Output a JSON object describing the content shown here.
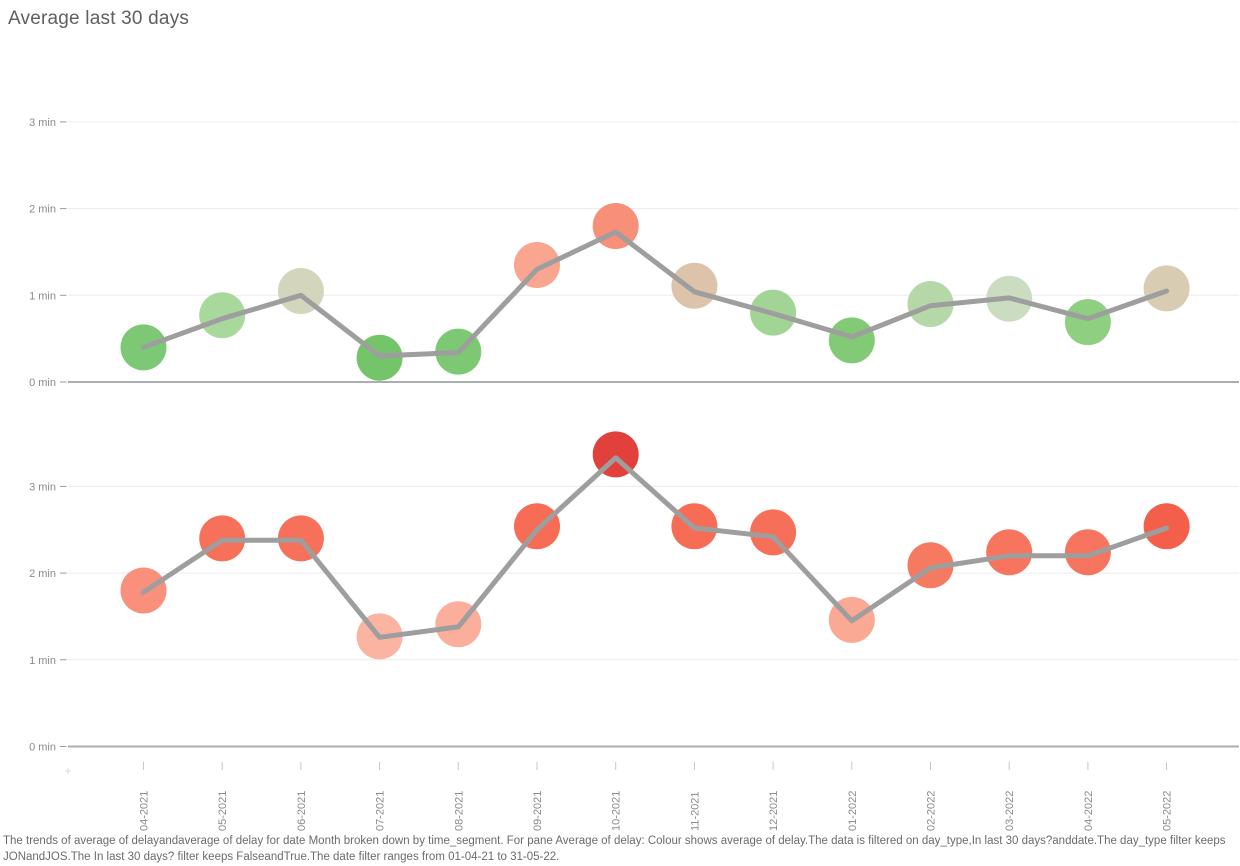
{
  "title": "Average last 30 days",
  "caption": "The trends of average of delayandaverage of delay for date Month broken down by time_segment. For pane Average of delay: Colour shows average of delay.The data is filtered on day_type,In last 30 days?anddate.The day_type filter keeps JONandJOS.The In last 30 days? filter keeps FalseandTrue.The date filter ranges from 01-04-21 to 31-05-22.",
  "colors": {
    "line": "#9e9e9e",
    "grid": "#ececec",
    "zero_line": "#a9aeb2",
    "tick_label": "#8a8a8a",
    "tick_mark": "#9b9b9b",
    "x_tick_mark": "#c6c6c6",
    "title_text": "#5f5f5f",
    "caption_text": "#6b6b6b"
  },
  "chart_data": [
    {
      "type": "line",
      "title": "Average last 30 days (upper time_segment pane)",
      "x": [
        "04-2021",
        "05-2021",
        "06-2021",
        "07-2021",
        "08-2021",
        "09-2021",
        "10-2021",
        "11-2021",
        "12-2021",
        "01-2022",
        "02-2022",
        "03-2022",
        "04-2022",
        "05-2022"
      ],
      "y_ticks": [
        "0 min",
        "1 min",
        "2 min",
        "3 min"
      ],
      "ylabel": "minutes",
      "ylim": [
        0,
        3.7
      ],
      "grid": true,
      "legend": false,
      "series": [
        {
          "name": "average of delay (trend line)",
          "type": "line",
          "values": [
            0.4,
            0.73,
            1.0,
            0.3,
            0.34,
            1.3,
            1.73,
            1.04,
            0.79,
            0.52,
            0.88,
            0.97,
            0.73,
            1.05
          ]
        },
        {
          "name": "average of delay (circles, colour = average of delay)",
          "type": "scatter",
          "values": [
            0.4,
            0.77,
            1.05,
            0.28,
            0.35,
            1.35,
            1.8,
            1.11,
            0.8,
            0.48,
            0.9,
            0.96,
            0.69,
            1.08
          ],
          "point_colors": [
            "#7dc874",
            "#a9d89d",
            "#d3d6bd",
            "#74c56a",
            "#7cc873",
            "#f9a58f",
            "#f88f78",
            "#dcc3aa",
            "#a2d495",
            "#83ca77",
            "#b5d8a8",
            "#cbdcc0",
            "#8ecf82",
            "#d8ccb3"
          ]
        }
      ]
    },
    {
      "type": "line",
      "title": "Average last 30 days (lower time_segment pane)",
      "x": [
        "04-2021",
        "05-2021",
        "06-2021",
        "07-2021",
        "08-2021",
        "09-2021",
        "10-2021",
        "11-2021",
        "12-2021",
        "01-2022",
        "02-2022",
        "03-2022",
        "04-2022",
        "05-2022"
      ],
      "y_ticks": [
        "0 min",
        "1 min",
        "2 min",
        "3 min"
      ],
      "ylabel": "minutes",
      "ylim": [
        0,
        3.7
      ],
      "grid": true,
      "legend": false,
      "series": [
        {
          "name": "average of delay (trend line)",
          "type": "line",
          "values": [
            1.78,
            2.38,
            2.38,
            1.26,
            1.38,
            2.5,
            3.33,
            2.52,
            2.42,
            1.45,
            2.06,
            2.2,
            2.2,
            2.52
          ]
        },
        {
          "name": "average of delay (circles, colour = average of delay)",
          "type": "scatter",
          "values": [
            1.8,
            2.4,
            2.4,
            1.27,
            1.41,
            2.54,
            3.37,
            2.54,
            2.47,
            1.46,
            2.09,
            2.24,
            2.24,
            2.54
          ],
          "point_colors": [
            "#f8907b",
            "#f7705a",
            "#f7705a",
            "#fbb3a2",
            "#faae9b",
            "#f66c55",
            "#e2403a",
            "#f66c55",
            "#f66f58",
            "#faa995",
            "#f67a61",
            "#f7755e",
            "#f7755e",
            "#f45f4b"
          ]
        }
      ]
    }
  ]
}
